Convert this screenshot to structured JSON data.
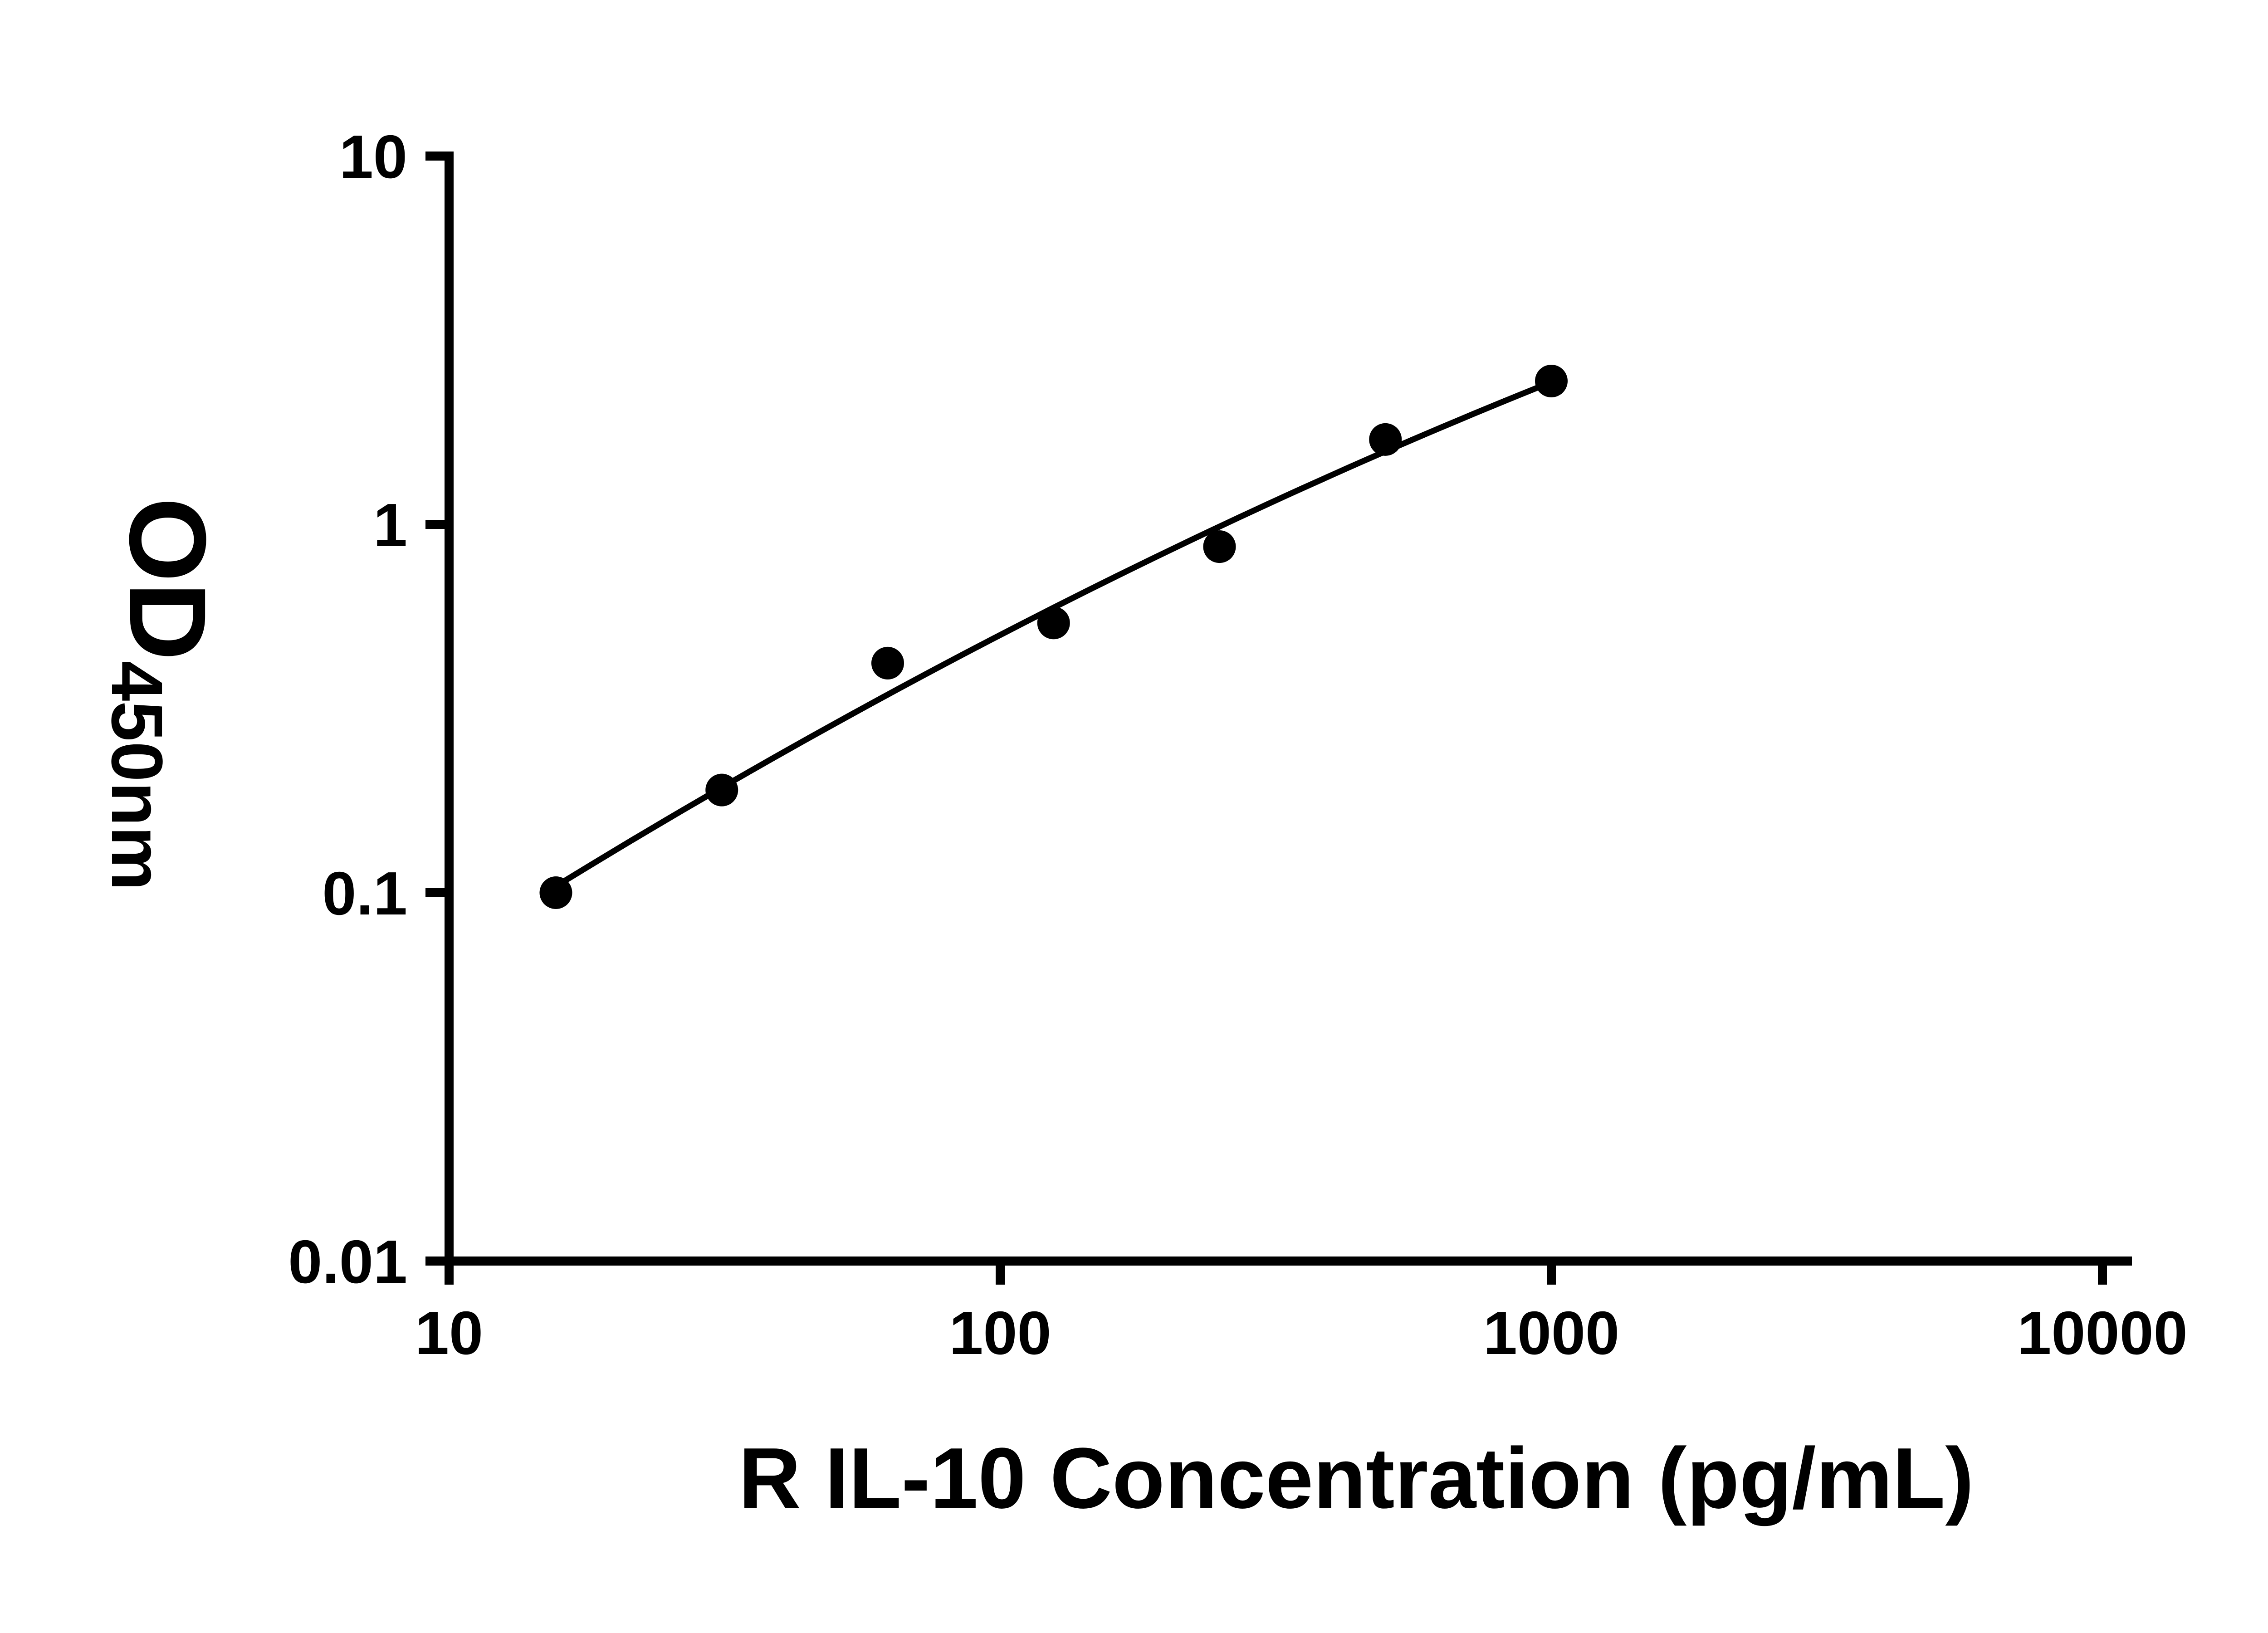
{
  "chart_data": {
    "type": "scatter",
    "title": "",
    "xlabel": "R IL-10 Concentration (pg/mL)",
    "ylabel_main": "OD",
    "ylabel_sub": "450nm",
    "x_scale": "log10",
    "y_scale": "log10",
    "xlim": [
      10,
      10000
    ],
    "ylim": [
      0.01,
      10
    ],
    "x_ticks": [
      10,
      100,
      1000,
      10000
    ],
    "x_tick_labels": [
      "10",
      "100",
      "1000",
      "10000"
    ],
    "y_ticks": [
      10,
      1,
      0.1,
      0.01
    ],
    "y_tick_labels": [
      "10",
      "1",
      "0.1",
      "0.01"
    ],
    "grid": false,
    "legend_position": "none",
    "marker_color": "#000000",
    "line_color": "#000000",
    "axis_color": "#000000",
    "background_color": "#ffffff",
    "series": [
      {
        "x": [
          15.625,
          31.25,
          62.5,
          125,
          250,
          500,
          1000
        ],
        "y": [
          0.1,
          0.19,
          0.42,
          0.54,
          0.87,
          1.7,
          2.45
        ],
        "trendline": true
      }
    ]
  }
}
